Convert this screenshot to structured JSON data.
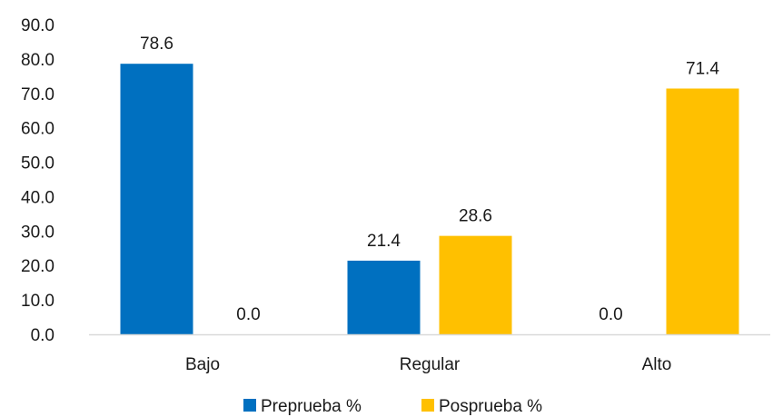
{
  "chart_data": {
    "type": "bar",
    "title": "",
    "xlabel": "",
    "ylabel": "",
    "categories": [
      "Bajo",
      "Regular",
      "Alto"
    ],
    "series": [
      {
        "name": "Preprueba %",
        "values": [
          78.6,
          21.4,
          0.0
        ],
        "color": "#0070C0"
      },
      {
        "name": "Posprueba %",
        "values": [
          0.0,
          28.6,
          71.4
        ],
        "color": "#FFC000"
      }
    ],
    "ylim": [
      0,
      90
    ],
    "yticks": [
      "0.0",
      "10.0",
      "20.0",
      "30.0",
      "40.0",
      "50.0",
      "60.0",
      "70.0",
      "80.0",
      "90.0"
    ],
    "data_labels": [
      [
        "78.6",
        "21.4",
        "0.0"
      ],
      [
        "0.0",
        "28.6",
        "71.4"
      ]
    ],
    "grid": false,
    "legend_position": "bottom",
    "axis_color": "#D9D9D9"
  }
}
